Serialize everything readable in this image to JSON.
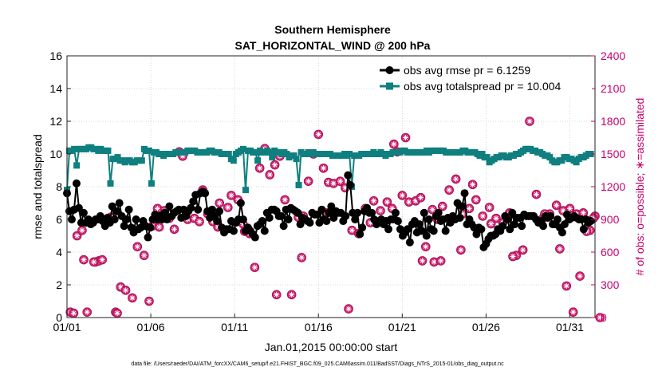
{
  "chart_data": {
    "type": "line",
    "title": "Southern Hemisphere",
    "subtitle": "SAT_HORIZONTAL_WIND @ 200 hPa",
    "xlabel": "Jan.01,2015 00:00:00 start",
    "ylabel_left": "rmse and totalspread",
    "ylabel_right": "# of obs: o=possible; ∗=assimilated",
    "ylim_left": [
      0,
      16
    ],
    "ylim_right": [
      0,
      2400
    ],
    "xlim_days": [
      0,
      31.5
    ],
    "x_ticks": [
      {
        "day": 0,
        "label": "01/01"
      },
      {
        "day": 5,
        "label": "01/06"
      },
      {
        "day": 10,
        "label": "01/11"
      },
      {
        "day": 15,
        "label": "01/16"
      },
      {
        "day": 20,
        "label": "01/21"
      },
      {
        "day": 25,
        "label": "01/26"
      },
      {
        "day": 30,
        "label": "01/31"
      }
    ],
    "y_ticks_left": [
      0,
      2,
      4,
      6,
      8,
      10,
      12,
      14,
      16
    ],
    "y_ticks_right": [
      0,
      300,
      600,
      900,
      1200,
      1500,
      1800,
      2100,
      2400
    ],
    "grid": true,
    "legend_position": "top-right",
    "colors": {
      "rmse": "#000000",
      "totalspread": "#0f7f7f",
      "obs_count": "#d21f6e",
      "axis_right": "#c8006e",
      "grid": "#cccccc"
    },
    "series": [
      {
        "name": "obs avg rmse pr = 6.1259",
        "axis": "left",
        "marker": "filled-circle",
        "values": [
          7.6,
          6.5,
          6.0,
          6.6,
          8.2,
          6.7,
          5.8,
          6.4,
          5.8,
          6.0,
          5.7,
          5.8,
          6.0,
          6.0,
          6.2,
          5.9,
          5.6,
          6.1,
          5.8,
          6.8,
          6.0,
          6.5,
          7.0,
          6.2,
          5.6,
          6.0,
          6.6,
          5.5,
          5.2,
          6.0,
          5.4,
          5.5,
          5.9,
          5.6,
          4.9,
          5.5,
          6.0,
          6.3,
          6.0,
          6.2,
          6.0,
          6.4,
          6.0,
          6.8,
          6.2,
          6.4,
          6.5,
          6.6,
          6.1,
          6.6,
          6.2,
          6.5,
          6.7,
          7.1,
          7.5,
          6.6,
          7.6,
          7.7,
          7.6,
          6.5,
          6.1,
          6.6,
          6.2,
          5.9,
          6.5,
          5.5,
          5.2,
          5.4,
          5.4,
          5.9,
          5.3,
          5.8,
          6.0,
          7.0,
          6.0,
          5.3,
          5.5,
          5.3,
          5.1,
          4.9,
          5.6,
          5.7,
          5.9,
          5.3,
          6.4,
          6.1,
          6.6,
          6.6,
          6.5,
          6.2,
          6.2,
          5.6,
          6.6,
          6.0,
          6.7,
          6.6,
          6.5,
          6.4,
          5.7,
          6.1,
          6.0,
          5.9,
          5.8,
          6.4,
          6.3,
          6.3,
          5.8,
          6.6,
          6.0,
          5.9,
          6.4,
          6.8,
          6.1,
          6.5,
          6.4,
          6.4,
          5.9,
          6.2,
          8.7,
          8.1,
          6.4,
          6.0,
          6.4,
          5.1,
          5.5,
          6.5,
          6.7,
          6.4,
          6.4,
          6.0,
          5.7,
          5.9,
          6.0,
          5.7,
          5.9,
          5.4,
          6.0,
          6.0,
          6.4,
          5.9,
          5.4,
          5.0,
          5.2,
          5.4,
          4.6,
          5.7,
          5.9,
          5.2,
          5.7,
          5.3,
          6.4,
          5.0,
          6.0,
          5.4,
          5.3,
          6.2,
          6.4,
          5.9,
          6.0,
          5.3,
          6.1,
          5.8,
          6.2,
          6.0,
          7.0,
          6.1,
          6.8,
          7.6,
          5.7,
          6.0,
          5.7,
          5.5,
          5.1,
          5.5,
          5.4,
          4.3,
          4.5,
          4.8,
          5.0,
          5.0,
          5.1,
          5.4,
          5.3,
          5.6,
          6.2,
          6.0,
          5.4,
          6.4,
          5.7,
          6.1,
          6.1,
          5.6,
          6.3,
          6.2,
          6.2,
          6.2,
          6.2,
          6.0,
          5.8,
          5.9,
          5.6,
          6.2,
          6.1,
          6.2,
          5.7,
          5.7,
          6.0,
          5.5,
          5.2,
          5.7,
          6.3,
          6.0,
          6.1,
          6.2,
          6.1,
          6.0,
          6.0,
          5.4,
          6.0,
          5.8,
          5.9
        ]
      },
      {
        "name": "obs avg totalspread pr = 10.004",
        "axis": "left",
        "marker": "filled-square",
        "values": [
          7.8,
          10.2,
          10.2,
          10.3,
          9.3,
          10.3,
          10.3,
          10.3,
          10.3,
          10.4,
          10.4,
          10.3,
          10.3,
          10.2,
          10.3,
          10.2,
          10.2,
          10.2,
          8.2,
          9.7,
          9.7,
          9.8,
          9.6,
          9.6,
          9.5,
          9.6,
          9.6,
          9.5,
          9.5,
          9.6,
          9.6,
          9.6,
          10.3,
          10.2,
          10.2,
          8.2,
          10.1,
          10.1,
          10.0,
          10.0,
          9.9,
          10.0,
          10.0,
          10.0,
          10.0,
          10.1,
          10.1,
          10.1,
          10.1,
          10.1,
          10.2,
          10.2,
          10.2,
          10.2,
          10.1,
          10.1,
          10.1,
          10.1,
          10.1,
          10.2,
          10.2,
          10.1,
          10.1,
          10.1,
          10.0,
          10.0,
          10.0,
          10.0,
          9.7,
          9.6,
          10.0,
          10.1,
          10.2,
          10.3,
          7.8,
          10.2,
          10.2,
          10.1,
          10.1,
          9.6,
          10.2,
          10.1,
          10.1,
          10.2,
          10.1,
          9.8,
          10.2,
          10.1,
          10.1,
          10.0,
          10.1,
          10.0,
          9.8,
          9.9,
          9.9,
          9.7,
          8.1,
          10.1,
          10.0,
          10.0,
          10.1,
          10.0,
          10.1,
          10.0,
          10.0,
          10.0,
          10.0,
          10.0,
          10.0,
          10.0,
          9.9,
          9.9,
          9.9,
          9.9,
          9.9,
          10.0,
          9.9,
          10.0,
          8.0,
          9.9,
          9.9,
          9.9,
          10.0,
          10.0,
          10.0,
          10.0,
          10.0,
          10.1,
          10.0,
          10.0,
          10.1,
          10.0,
          9.9,
          10.0,
          10.0,
          10.1,
          10.1,
          10.1,
          10.1,
          10.2,
          10.2,
          10.1,
          10.1,
          10.1,
          10.1,
          10.1,
          10.1,
          10.1,
          10.1,
          10.2,
          10.1,
          10.2,
          10.2,
          10.2,
          10.2,
          10.2,
          10.2,
          10.1,
          10.1,
          10.1,
          10.1,
          10.1,
          10.1,
          10.1,
          10.2,
          10.2,
          10.1,
          10.1,
          10.1,
          10.1,
          10.0,
          9.9,
          10.0,
          9.8,
          9.8,
          9.5,
          9.6,
          9.7,
          9.8,
          9.8,
          9.9,
          9.9,
          9.8,
          9.8,
          9.9,
          9.9,
          10.0,
          10.0,
          10.1,
          10.2,
          10.3,
          10.3,
          10.3,
          10.2,
          10.2,
          10.1,
          10.1,
          10.0,
          9.9,
          9.9,
          9.8,
          9.6,
          9.5,
          9.5,
          9.6,
          9.6,
          9.8,
          9.8,
          9.7,
          9.7,
          9.6,
          9.5,
          9.7,
          9.8,
          9.8,
          9.9,
          10.0,
          10.0
        ]
      },
      {
        "name": "# of obs possible / assimilated",
        "axis": "right",
        "marker": "circle-asterisk",
        "points": [
          [
            0.2,
            50
          ],
          [
            0.6,
            750
          ],
          [
            0.9,
            800
          ],
          [
            1.2,
            50
          ],
          [
            1.7,
            510
          ],
          [
            1.9,
            520
          ],
          [
            2.1,
            530
          ],
          [
            2.3,
            870
          ],
          [
            2.6,
            920
          ],
          [
            2.9,
            50
          ],
          [
            3.2,
            280
          ],
          [
            3.5,
            250
          ],
          [
            3.9,
            180
          ],
          [
            4.2,
            650
          ],
          [
            4.6,
            570
          ],
          [
            4.9,
            150
          ],
          [
            5.1,
            840
          ],
          [
            5.4,
            1000
          ],
          [
            5.8,
            980
          ],
          [
            6.1,
            910
          ],
          [
            6.4,
            810
          ],
          [
            6.7,
            1520
          ],
          [
            6.9,
            1480
          ],
          [
            7.2,
            900
          ],
          [
            7.6,
            910
          ],
          [
            7.9,
            880
          ],
          [
            8.1,
            1170
          ],
          [
            8.4,
            950
          ],
          [
            8.7,
            880
          ],
          [
            9.1,
            1050
          ],
          [
            9.6,
            1010
          ],
          [
            9.8,
            1120
          ],
          [
            10.2,
            1080
          ],
          [
            10.6,
            790
          ],
          [
            10.9,
            770
          ],
          [
            11.2,
            460
          ],
          [
            11.5,
            1370
          ],
          [
            11.8,
            1550
          ],
          [
            12.1,
            1310
          ],
          [
            12.4,
            1400
          ],
          [
            12.7,
            1480
          ],
          [
            13.0,
            1080
          ],
          [
            13.4,
            210
          ],
          [
            13.8,
            920
          ],
          [
            14.1,
            930
          ],
          [
            14.4,
            1250
          ],
          [
            14.7,
            1500
          ],
          [
            15.0,
            1680
          ],
          [
            15.3,
            1370
          ],
          [
            15.6,
            1240
          ],
          [
            15.9,
            1230
          ],
          [
            16.3,
            1250
          ],
          [
            16.6,
            1190
          ],
          [
            17.0,
            800
          ],
          [
            17.4,
            770
          ],
          [
            17.8,
            1000
          ],
          [
            18.1,
            870
          ],
          [
            18.3,
            1070
          ],
          [
            18.7,
            980
          ],
          [
            19.1,
            1060
          ],
          [
            19.4,
            1000
          ],
          [
            19.7,
            1520
          ],
          [
            20.0,
            1120
          ],
          [
            20.4,
            1060
          ],
          [
            20.8,
            1070
          ],
          [
            21.1,
            1100
          ],
          [
            21.4,
            650
          ],
          [
            21.8,
            990
          ],
          [
            22.1,
            900
          ],
          [
            22.4,
            1020
          ],
          [
            22.8,
            1170
          ],
          [
            23.2,
            1270
          ],
          [
            23.6,
            950
          ],
          [
            24.0,
            1000
          ],
          [
            24.4,
            1080
          ],
          [
            24.8,
            930
          ],
          [
            25.2,
            1010
          ],
          [
            25.6,
            910
          ],
          [
            26.0,
            870
          ],
          [
            26.4,
            960
          ],
          [
            26.8,
            570
          ],
          [
            27.2,
            620
          ],
          [
            27.6,
            1800
          ],
          [
            28.0,
            1130
          ],
          [
            28.4,
            910
          ],
          [
            28.8,
            950
          ],
          [
            29.2,
            1030
          ],
          [
            29.6,
            980
          ],
          [
            30.0,
            1000
          ],
          [
            30.4,
            950
          ],
          [
            30.8,
            960
          ],
          [
            31.2,
            800
          ],
          [
            31.5,
            930
          ],
          [
            0.4,
            40
          ],
          [
            1.0,
            530
          ],
          [
            1.6,
            510
          ],
          [
            3.0,
            40
          ],
          [
            5.5,
            830
          ],
          [
            9.0,
            830
          ],
          [
            10.5,
            860
          ],
          [
            12.5,
            210
          ],
          [
            14.0,
            550
          ],
          [
            15.5,
            960
          ],
          [
            16.8,
            80
          ],
          [
            19.5,
            1590
          ],
          [
            20.2,
            1650
          ],
          [
            21.2,
            520
          ],
          [
            21.9,
            510
          ],
          [
            22.3,
            520
          ],
          [
            23.5,
            620
          ],
          [
            24.2,
            1220
          ],
          [
            25.3,
            860
          ],
          [
            26.6,
            560
          ],
          [
            28.5,
            950
          ],
          [
            29.4,
            630
          ],
          [
            29.8,
            290
          ],
          [
            30.2,
            50
          ],
          [
            30.6,
            380
          ],
          [
            31.0,
            790
          ],
          [
            31.4,
            910
          ],
          [
            31.8,
            0
          ]
        ]
      }
    ]
  },
  "footer": {
    "data_file": "data file: /Users/raeder/DAI/ATM_forcXX/CAM6_setup/f.e21.FHIST_BGC.f09_025.CAM6assim.011/BadSST/Diags_NTrS_2015-01/obs_diag_output.nc"
  }
}
